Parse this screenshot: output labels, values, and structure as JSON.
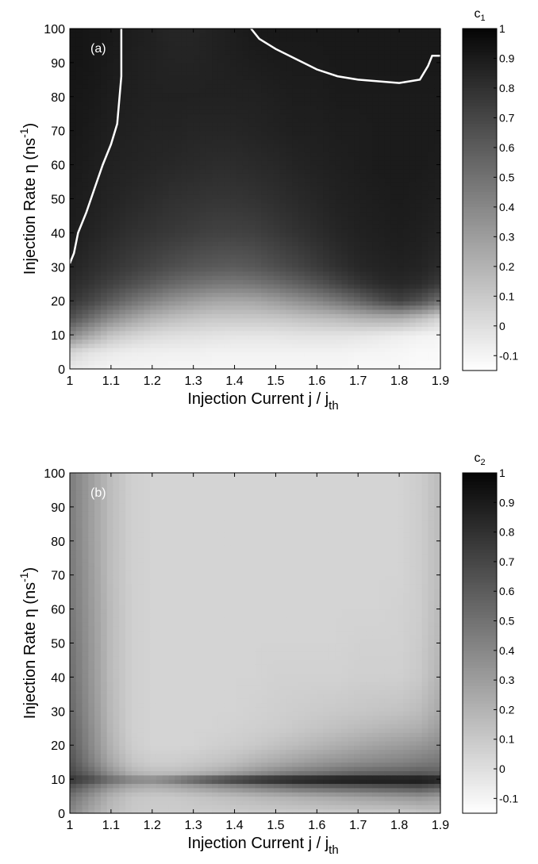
{
  "chart_data": [
    {
      "type": "heatmap",
      "panel_label": "(a)",
      "xlabel": {
        "main": "Injection Current  j / j",
        "sub": "th"
      },
      "ylabel": {
        "main": "Injection Rate η  (ns",
        "sup": "-1",
        "tail": ")"
      },
      "xlim": [
        1,
        1.9
      ],
      "ylim": [
        0,
        100
      ],
      "xticks": [
        "1",
        "1.1",
        "1.2",
        "1.3",
        "1.4",
        "1.5",
        "1.6",
        "1.7",
        "1.8",
        "1.9"
      ],
      "yticks": [
        "0",
        "10",
        "20",
        "30",
        "40",
        "50",
        "60",
        "70",
        "80",
        "90",
        "100"
      ],
      "colorbar": {
        "label": "c",
        "label_sub": "1",
        "range": [
          -0.15,
          1
        ],
        "ticks": [
          "1",
          "0.9",
          "0.8",
          "0.7",
          "0.6",
          "0.5",
          "0.4",
          "0.3",
          "0.2",
          "0.1",
          "0",
          "-0.1"
        ],
        "colormap": "gray, white = low, black = high"
      },
      "x": [
        1,
        1.05,
        1.1,
        1.15,
        1.2,
        1.25,
        1.3,
        1.35,
        1.4,
        1.45,
        1.5,
        1.55,
        1.6,
        1.65,
        1.7,
        1.75,
        1.8,
        1.85,
        1.9
      ],
      "y": [
        0,
        5,
        10,
        15,
        20,
        25,
        30,
        40,
        50,
        60,
        70,
        80,
        90,
        100
      ],
      "z": [
        [
          -0.05,
          -0.08,
          -0.1,
          -0.1,
          -0.1,
          -0.11,
          -0.11,
          -0.11,
          -0.11,
          -0.11,
          -0.11,
          -0.11,
          -0.11,
          -0.11,
          -0.12,
          -0.12,
          -0.12,
          -0.13,
          -0.13
        ],
        [
          0.05,
          -0.02,
          -0.05,
          -0.07,
          -0.08,
          -0.08,
          -0.08,
          -0.09,
          -0.09,
          -0.09,
          -0.09,
          -0.09,
          -0.09,
          -0.09,
          -0.1,
          -0.1,
          -0.11,
          -0.12,
          -0.12
        ],
        [
          0.4,
          0.25,
          0.12,
          0.06,
          0.02,
          0.0,
          -0.01,
          -0.02,
          -0.03,
          -0.03,
          -0.03,
          -0.02,
          -0.02,
          -0.02,
          -0.03,
          -0.05,
          -0.07,
          -0.09,
          -0.1
        ],
        [
          0.66,
          0.52,
          0.38,
          0.28,
          0.2,
          0.15,
          0.12,
          0.1,
          0.1,
          0.1,
          0.11,
          0.13,
          0.15,
          0.17,
          0.2,
          0.22,
          0.22,
          0.15,
          0.05
        ],
        [
          0.78,
          0.7,
          0.6,
          0.5,
          0.42,
          0.35,
          0.3,
          0.26,
          0.25,
          0.26,
          0.3,
          0.35,
          0.4,
          0.47,
          0.55,
          0.65,
          0.72,
          0.65,
          0.5
        ],
        [
          0.83,
          0.78,
          0.72,
          0.66,
          0.6,
          0.54,
          0.5,
          0.47,
          0.46,
          0.48,
          0.52,
          0.57,
          0.63,
          0.7,
          0.77,
          0.82,
          0.84,
          0.82,
          0.75
        ],
        [
          0.86,
          0.82,
          0.78,
          0.74,
          0.7,
          0.66,
          0.63,
          0.61,
          0.6,
          0.62,
          0.66,
          0.7,
          0.75,
          0.8,
          0.84,
          0.86,
          0.87,
          0.86,
          0.82
        ],
        [
          0.89,
          0.86,
          0.83,
          0.8,
          0.78,
          0.76,
          0.74,
          0.72,
          0.72,
          0.73,
          0.76,
          0.79,
          0.82,
          0.85,
          0.87,
          0.88,
          0.89,
          0.88,
          0.86
        ],
        [
          0.9,
          0.88,
          0.86,
          0.84,
          0.82,
          0.8,
          0.79,
          0.78,
          0.78,
          0.79,
          0.81,
          0.83,
          0.85,
          0.87,
          0.88,
          0.89,
          0.9,
          0.89,
          0.88
        ],
        [
          0.91,
          0.89,
          0.87,
          0.86,
          0.85,
          0.84,
          0.83,
          0.82,
          0.82,
          0.83,
          0.84,
          0.86,
          0.87,
          0.88,
          0.89,
          0.9,
          0.9,
          0.9,
          0.89
        ],
        [
          0.92,
          0.9,
          0.88,
          0.87,
          0.86,
          0.86,
          0.85,
          0.85,
          0.85,
          0.86,
          0.87,
          0.88,
          0.88,
          0.89,
          0.89,
          0.9,
          0.9,
          0.9,
          0.9
        ],
        [
          0.92,
          0.91,
          0.89,
          0.88,
          0.87,
          0.87,
          0.87,
          0.87,
          0.87,
          0.87,
          0.88,
          0.89,
          0.89,
          0.9,
          0.9,
          0.9,
          0.9,
          0.9,
          0.9
        ],
        [
          0.93,
          0.92,
          0.9,
          0.88,
          0.87,
          0.86,
          0.86,
          0.87,
          0.88,
          0.89,
          0.9,
          0.9,
          0.9,
          0.91,
          0.91,
          0.91,
          0.91,
          0.91,
          0.91
        ],
        [
          0.93,
          0.92,
          0.91,
          0.89,
          0.87,
          0.85,
          0.85,
          0.87,
          0.89,
          0.91,
          0.91,
          0.91,
          0.91,
          0.91,
          0.91,
          0.91,
          0.91,
          0.91,
          0.91
        ]
      ],
      "contours": [
        [
          [
            1.0,
            31
          ],
          [
            1.01,
            34
          ],
          [
            1.02,
            40
          ],
          [
            1.04,
            46
          ],
          [
            1.06,
            53
          ],
          [
            1.08,
            60
          ],
          [
            1.1,
            66
          ],
          [
            1.115,
            72
          ],
          [
            1.12,
            79
          ],
          [
            1.125,
            86
          ],
          [
            1.125,
            100
          ]
        ],
        [
          [
            1.44,
            100
          ],
          [
            1.46,
            97
          ],
          [
            1.5,
            94
          ],
          [
            1.55,
            91
          ],
          [
            1.6,
            88
          ],
          [
            1.65,
            86
          ],
          [
            1.7,
            85
          ],
          [
            1.75,
            84.5
          ],
          [
            1.8,
            84
          ],
          [
            1.85,
            85
          ],
          [
            1.87,
            89
          ],
          [
            1.88,
            92
          ],
          [
            1.9,
            92
          ]
        ]
      ],
      "contour_color": "#ffffff"
    },
    {
      "type": "heatmap",
      "panel_label": "(b)",
      "xlabel": {
        "main": "Injection Current  j / j",
        "sub": "th"
      },
      "ylabel": {
        "main": "Injection Rate η  (ns",
        "sup": "-1",
        "tail": ")"
      },
      "xlim": [
        1,
        1.9
      ],
      "ylim": [
        0,
        100
      ],
      "xticks": [
        "1",
        "1.1",
        "1.2",
        "1.3",
        "1.4",
        "1.5",
        "1.6",
        "1.7",
        "1.8",
        "1.9"
      ],
      "yticks": [
        "0",
        "10",
        "20",
        "30",
        "40",
        "50",
        "60",
        "70",
        "80",
        "90",
        "100"
      ],
      "colorbar": {
        "label": "c",
        "label_sub": "2",
        "range": [
          -0.15,
          1
        ],
        "ticks": [
          "1",
          "0.9",
          "0.8",
          "0.7",
          "0.6",
          "0.5",
          "0.4",
          "0.3",
          "0.2",
          "0.1",
          "0",
          "-0.1"
        ],
        "colormap": "gray, white = low, black = high"
      },
      "x": [
        1,
        1.05,
        1.1,
        1.15,
        1.2,
        1.25,
        1.3,
        1.35,
        1.4,
        1.45,
        1.5,
        1.55,
        1.6,
        1.65,
        1.7,
        1.75,
        1.8,
        1.85,
        1.9
      ],
      "y": [
        0,
        5,
        8,
        10,
        12,
        15,
        20,
        25,
        30,
        40,
        50,
        60,
        70,
        80,
        90,
        100
      ],
      "z": [
        [
          0.4,
          0.25,
          0.15,
          0.1,
          0.08,
          0.08,
          0.08,
          0.08,
          0.08,
          0.08,
          0.08,
          0.08,
          0.08,
          0.08,
          0.08,
          0.08,
          0.08,
          0.1,
          0.12
        ],
        [
          0.5,
          0.35,
          0.2,
          0.12,
          0.1,
          0.1,
          0.12,
          0.14,
          0.16,
          0.18,
          0.2,
          0.22,
          0.24,
          0.26,
          0.28,
          0.3,
          0.32,
          0.34,
          0.3
        ],
        [
          0.65,
          0.5,
          0.35,
          0.25,
          0.22,
          0.25,
          0.3,
          0.35,
          0.4,
          0.45,
          0.5,
          0.55,
          0.58,
          0.6,
          0.62,
          0.64,
          0.66,
          0.68,
          0.62
        ],
        [
          0.8,
          0.7,
          0.55,
          0.45,
          0.42,
          0.5,
          0.62,
          0.72,
          0.8,
          0.86,
          0.9,
          0.93,
          0.95,
          0.97,
          0.97,
          0.97,
          0.96,
          0.96,
          0.92
        ],
        [
          0.7,
          0.55,
          0.35,
          0.2,
          0.15,
          0.15,
          0.18,
          0.22,
          0.28,
          0.34,
          0.4,
          0.45,
          0.48,
          0.52,
          0.55,
          0.57,
          0.58,
          0.6,
          0.58
        ],
        [
          0.65,
          0.45,
          0.25,
          0.12,
          0.08,
          0.08,
          0.1,
          0.12,
          0.15,
          0.2,
          0.24,
          0.28,
          0.32,
          0.35,
          0.38,
          0.4,
          0.42,
          0.45,
          0.48
        ],
        [
          0.6,
          0.4,
          0.2,
          0.08,
          0.05,
          0.05,
          0.05,
          0.07,
          0.08,
          0.1,
          0.13,
          0.16,
          0.19,
          0.22,
          0.25,
          0.28,
          0.3,
          0.33,
          0.38
        ],
        [
          0.58,
          0.38,
          0.18,
          0.07,
          0.05,
          0.05,
          0.05,
          0.05,
          0.06,
          0.07,
          0.08,
          0.1,
          0.12,
          0.14,
          0.16,
          0.18,
          0.2,
          0.22,
          0.3
        ],
        [
          0.55,
          0.36,
          0.17,
          0.07,
          0.05,
          0.05,
          0.05,
          0.05,
          0.05,
          0.06,
          0.07,
          0.08,
          0.09,
          0.1,
          0.11,
          0.12,
          0.13,
          0.16,
          0.25
        ],
        [
          0.52,
          0.34,
          0.16,
          0.07,
          0.05,
          0.05,
          0.05,
          0.05,
          0.05,
          0.05,
          0.06,
          0.06,
          0.06,
          0.06,
          0.07,
          0.07,
          0.07,
          0.1,
          0.2
        ],
        [
          0.5,
          0.33,
          0.16,
          0.07,
          0.05,
          0.05,
          0.05,
          0.05,
          0.05,
          0.05,
          0.05,
          0.05,
          0.05,
          0.05,
          0.06,
          0.06,
          0.06,
          0.09,
          0.18
        ],
        [
          0.48,
          0.32,
          0.16,
          0.07,
          0.05,
          0.05,
          0.05,
          0.05,
          0.05,
          0.05,
          0.05,
          0.05,
          0.05,
          0.05,
          0.05,
          0.05,
          0.06,
          0.08,
          0.17
        ],
        [
          0.47,
          0.31,
          0.15,
          0.07,
          0.05,
          0.05,
          0.05,
          0.05,
          0.05,
          0.05,
          0.05,
          0.05,
          0.05,
          0.05,
          0.05,
          0.05,
          0.05,
          0.08,
          0.16
        ],
        [
          0.46,
          0.3,
          0.15,
          0.07,
          0.05,
          0.05,
          0.05,
          0.05,
          0.05,
          0.05,
          0.05,
          0.05,
          0.05,
          0.05,
          0.05,
          0.05,
          0.05,
          0.08,
          0.16
        ],
        [
          0.45,
          0.3,
          0.15,
          0.07,
          0.05,
          0.05,
          0.05,
          0.05,
          0.05,
          0.05,
          0.05,
          0.05,
          0.05,
          0.05,
          0.05,
          0.05,
          0.05,
          0.08,
          0.16
        ],
        [
          0.45,
          0.3,
          0.15,
          0.07,
          0.05,
          0.05,
          0.05,
          0.05,
          0.05,
          0.05,
          0.05,
          0.05,
          0.05,
          0.05,
          0.05,
          0.05,
          0.05,
          0.08,
          0.16
        ]
      ],
      "contours": [],
      "contour_color": "#ffffff"
    }
  ]
}
